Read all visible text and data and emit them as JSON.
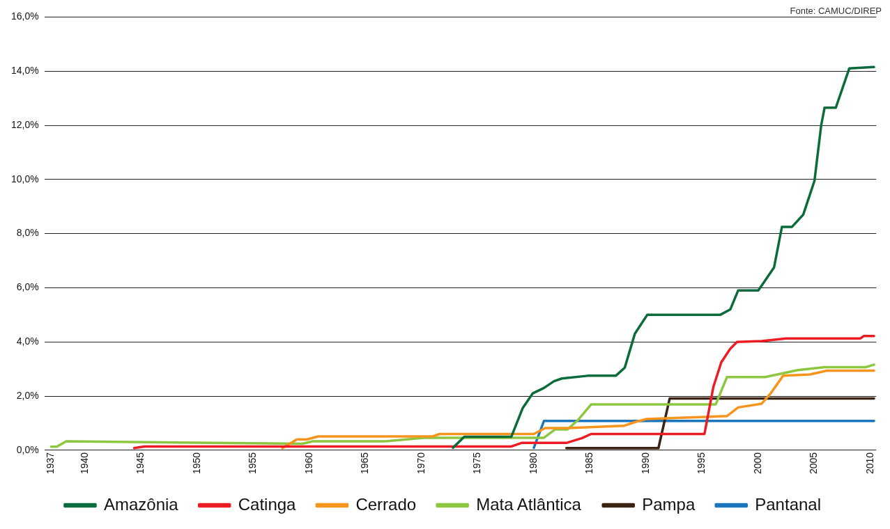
{
  "chart_data": {
    "type": "line",
    "annotations": [
      "Fonte: CAMUC/DIREP"
    ],
    "xlim": [
      1936.4,
      2010.5
    ],
    "xticks": [
      1937,
      1940,
      1945,
      1950,
      1955,
      1960,
      1965,
      1970,
      1975,
      1980,
      1985,
      1990,
      1995,
      2000,
      2005,
      2010
    ],
    "ylim": [
      0,
      16
    ],
    "yticks": [
      {
        "value": 0,
        "label": "0,0%"
      },
      {
        "value": 2,
        "label": "2,0%"
      },
      {
        "value": 4,
        "label": "4,0%"
      },
      {
        "value": 6,
        "label": "6,0%"
      },
      {
        "value": 8,
        "label": "8,0%"
      },
      {
        "value": 10,
        "label": "10,0%"
      },
      {
        "value": 12,
        "label": "12,0%"
      },
      {
        "value": 14,
        "label": "14,0%"
      },
      {
        "value": 16,
        "label": "16,0%"
      }
    ],
    "grid": "y",
    "legend": "bottom",
    "marker": "none",
    "line_style": "solid",
    "series": [
      {
        "name": "Amazônia",
        "color": "#0b6b3a",
        "x": [
          1972.8,
          1973.8,
          1978.0,
          1979.0,
          1979.9,
          1980.9,
          1981.8,
          1982.5,
          1984.8,
          1987.3,
          1988.1,
          1989.0,
          1990.1,
          1996.6,
          1997.5,
          1998.2,
          2000.0,
          2001.4,
          2002.1,
          2003.0,
          2004.0,
          2005.0,
          2005.6,
          2005.9,
          2006.9,
          2008.1,
          2010.3
        ],
        "values": [
          0.09,
          0.5,
          0.5,
          1.55,
          2.1,
          2.3,
          2.55,
          2.65,
          2.75,
          2.75,
          3.05,
          4.3,
          5.0,
          5.0,
          5.2,
          5.9,
          5.9,
          6.75,
          8.25,
          8.25,
          8.7,
          9.95,
          12.0,
          12.65,
          12.65,
          14.1,
          14.15
        ]
      },
      {
        "name": "Catinga",
        "color": "#ed1c24",
        "x": [
          1944.4,
          1945.3,
          1978.0,
          1978.9,
          1982.9,
          1984.3,
          1985.1,
          1995.2,
          1996.0,
          1996.7,
          1997.5,
          1998.1,
          2000.3,
          2002.5,
          2009.1,
          2009.4,
          2010.3
        ],
        "values": [
          0.08,
          0.14,
          0.14,
          0.27,
          0.27,
          0.45,
          0.6,
          0.6,
          2.35,
          3.25,
          3.75,
          4.0,
          4.03,
          4.13,
          4.13,
          4.22,
          4.22
        ]
      },
      {
        "name": "Cerrado",
        "color": "#f7941d",
        "x": [
          1957.6,
          1958.9,
          1959.8,
          1960.8,
          1971.0,
          1971.6,
          1980.0,
          1981.0,
          1983.0,
          1988.0,
          1989.1,
          1990.0,
          1997.2,
          1998.2,
          2000.3,
          2001.1,
          2002.2,
          2004.6,
          2006.1,
          2010.3
        ],
        "values": [
          0.08,
          0.4,
          0.4,
          0.51,
          0.51,
          0.6,
          0.6,
          0.82,
          0.82,
          0.9,
          1.05,
          1.15,
          1.26,
          1.58,
          1.72,
          2.1,
          2.75,
          2.8,
          2.94,
          2.94
        ]
      },
      {
        "name": "Mata Atlântica",
        "color": "#8dc63f",
        "x": [
          1937.0,
          1937.5,
          1938.35,
          1959.4,
          1960.3,
          1966.8,
          1970.2,
          1980.9,
          1981.9,
          1983.0,
          1983.9,
          1985.1,
          1996.2,
          1997.2,
          2000.6,
          2003.5,
          2005.9,
          2009.6,
          2010.3
        ],
        "values": [
          0.13,
          0.13,
          0.33,
          0.24,
          0.33,
          0.33,
          0.46,
          0.46,
          0.77,
          0.77,
          1.1,
          1.69,
          1.69,
          2.7,
          2.7,
          2.96,
          3.07,
          3.07,
          3.16
        ]
      },
      {
        "name": "Pampa",
        "color": "#3b2314",
        "x": [
          1982.9,
          1991.1,
          1992.1,
          2010.3
        ],
        "values": [
          0.08,
          0.08,
          1.91,
          1.91
        ]
      },
      {
        "name": "Pantanal",
        "color": "#1b75bc",
        "x": [
          1980.0,
          1980.9,
          2010.3
        ],
        "values": [
          0.09,
          1.08,
          1.08
        ]
      }
    ]
  }
}
